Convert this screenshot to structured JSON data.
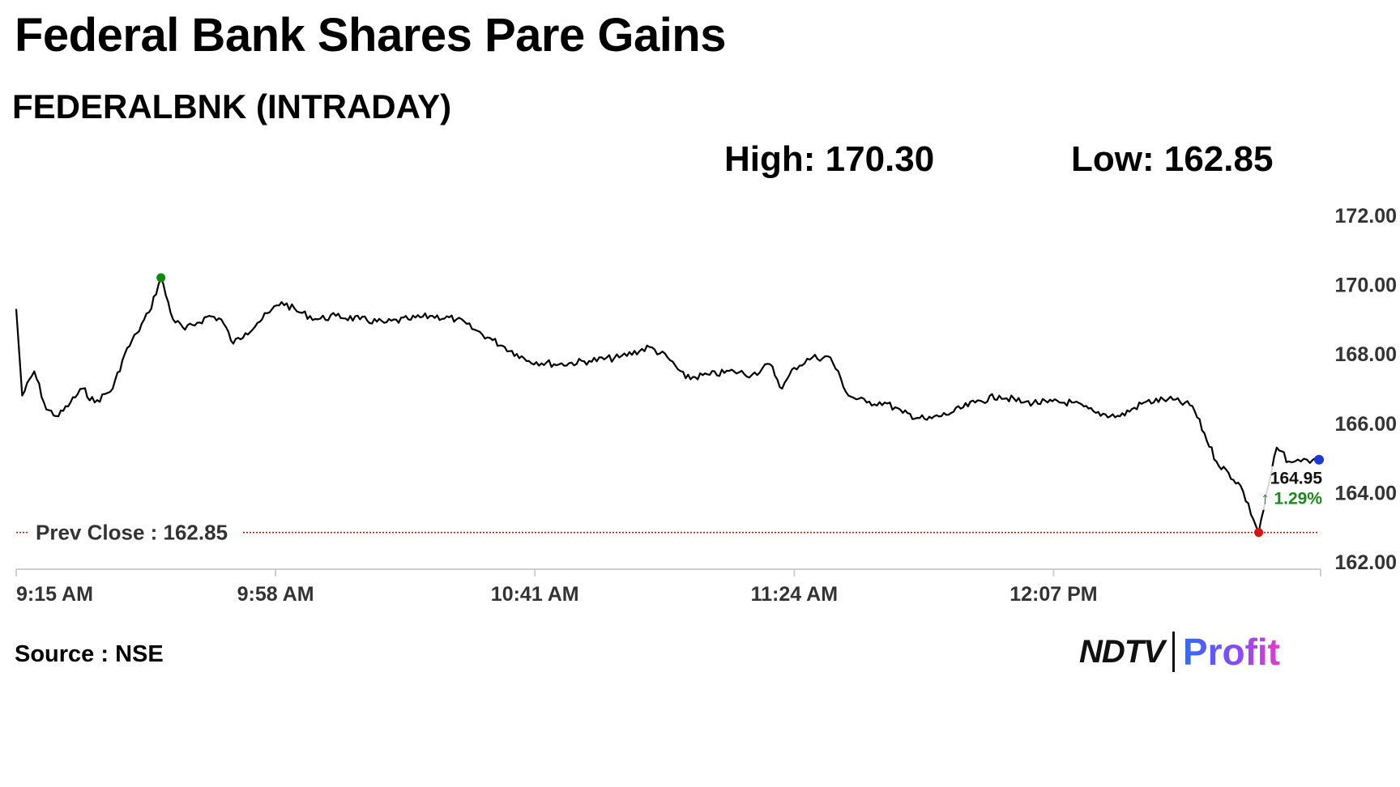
{
  "title": "Federal Bank Shares Pare Gains",
  "subtitle": "FEDERALBNK (INTRADAY)",
  "stats": {
    "high_label": "High: 170.30",
    "low_label": "Low: 162.85"
  },
  "source": "Source : NSE",
  "logo": {
    "left": "NDTV",
    "right": "Profit"
  },
  "chart_data": {
    "type": "line",
    "y_ticks": [
      "172.00",
      "170.00",
      "168.00",
      "166.00",
      "164.00",
      "162.00"
    ],
    "x_ticks": [
      "9:15 AM",
      "9:58 AM",
      "10:41 AM",
      "11:24 AM",
      "12:07 PM"
    ],
    "ylim": [
      162,
      172
    ],
    "xlim": [
      "9:15",
      "12:51"
    ],
    "prev_close": 162.85,
    "prev_close_label": "Prev Close : 162.85",
    "high": 170.3,
    "low": 162.85,
    "last": 164.95,
    "last_label": "164.95",
    "change_label": "↑ 1.29%",
    "grid": false,
    "colors": {
      "line": "#000000",
      "prev_close": "#cc0000",
      "high_marker": "#0b8a0b",
      "low_marker": "#e01010",
      "last_marker": "#1a3ad0",
      "change_text": "#1a8a1a"
    },
    "series": [
      {
        "x": [
          "9:15",
          "9:16",
          "9:18",
          "9:20",
          "9:22",
          "9:24",
          "9:26",
          "9:28",
          "9:31",
          "9:33",
          "9:35",
          "9:37",
          "9:39",
          "9:41",
          "9:43",
          "9:45",
          "9:47",
          "9:49",
          "9:51",
          "9:53",
          "9:55",
          "9:57",
          "9:59",
          "10:02",
          "10:05",
          "10:08",
          "10:12",
          "10:16",
          "10:20",
          "10:24",
          "10:28",
          "10:31",
          "10:34",
          "10:36",
          "10:38",
          "10:40",
          "10:45",
          "10:50",
          "10:55",
          "11:00",
          "11:03",
          "11:06",
          "11:10",
          "11:14",
          "11:17",
          "11:20",
          "11:22",
          "11:24",
          "11:27",
          "11:30",
          "11:33",
          "11:36",
          "11:39",
          "11:42",
          "11:46",
          "11:50",
          "11:54",
          "11:58",
          "12:02",
          "12:06",
          "12:10",
          "12:14",
          "12:18",
          "12:22",
          "12:26",
          "12:30",
          "12:34",
          "12:38",
          "12:41",
          "12:44",
          "12:46",
          "12:47",
          "12:48",
          "12:49",
          "12:50",
          "12:51"
        ],
        "y": [
          169.3,
          166.8,
          167.5,
          166.4,
          166.2,
          166.6,
          167.0,
          166.6,
          167.0,
          168.0,
          168.6,
          169.2,
          170.2,
          169.0,
          168.7,
          168.9,
          169.1,
          169.0,
          168.3,
          168.6,
          168.9,
          169.2,
          169.5,
          169.2,
          169.0,
          169.1,
          169.0,
          168.9,
          169.0,
          169.1,
          169.0,
          168.7,
          168.4,
          168.2,
          168.0,
          167.8,
          167.7,
          167.8,
          167.9,
          168.2,
          167.9,
          167.3,
          167.4,
          167.5,
          167.4,
          167.7,
          167.0,
          167.6,
          167.9,
          167.9,
          166.8,
          166.6,
          166.6,
          166.3,
          166.1,
          166.3,
          166.6,
          166.8,
          166.6,
          166.6,
          166.6,
          166.3,
          166.2,
          166.6,
          166.7,
          166.5,
          164.9,
          164.2,
          162.85,
          165.3,
          164.9,
          164.9,
          164.9,
          164.95,
          164.95,
          164.95
        ]
      }
    ]
  }
}
